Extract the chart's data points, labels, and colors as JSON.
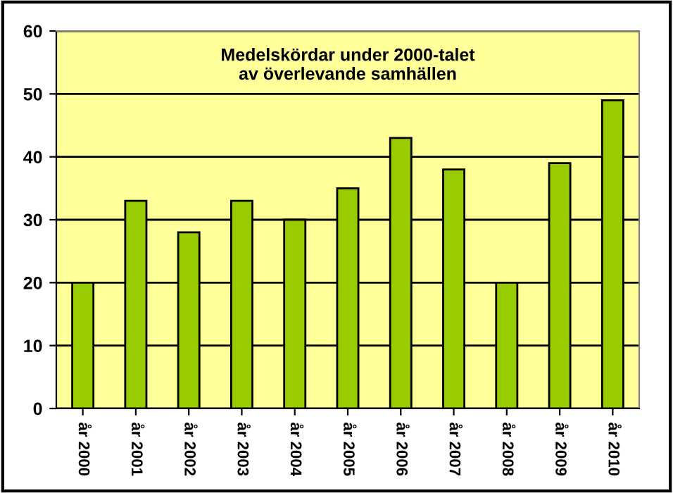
{
  "chart_data": {
    "type": "bar",
    "title": "Medelskördar under 2000-talet\nav överlevande samhällen",
    "categories": [
      "år 2000",
      "år 2001",
      "år 2002",
      "år 2003",
      "år 2004",
      "år 2005",
      "år 2006",
      "år 2007",
      "år 2008",
      "år 2009",
      "år 2010"
    ],
    "values": [
      20,
      33,
      28,
      33,
      30,
      35,
      43,
      38,
      20,
      39,
      49
    ],
    "color": "#99cc00",
    "ylim": [
      0,
      60
    ],
    "yticks": [
      0,
      10,
      20,
      30,
      40,
      50,
      60
    ],
    "grid": "y",
    "legend": false
  }
}
